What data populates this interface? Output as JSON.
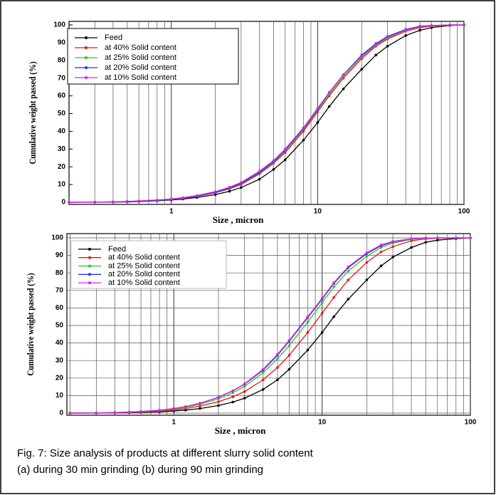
{
  "chart_data": [
    {
      "type": "line",
      "xlabel": "Size , micron",
      "ylabel": "Cumulative weight passed (%)",
      "xscale": "log",
      "xlim": [
        0.2,
        100
      ],
      "ylim": [
        0,
        100
      ],
      "xticks": [
        1,
        10,
        100
      ],
      "yticks": [
        0,
        10,
        20,
        30,
        40,
        50,
        60,
        70,
        80,
        90,
        100
      ],
      "x_minor_grid": [
        0.3,
        0.4,
        0.5,
        0.6,
        0.7,
        0.8,
        0.9,
        2,
        3,
        4,
        5,
        6,
        7,
        8,
        9,
        20,
        30,
        40,
        50,
        60,
        70,
        80,
        90
      ],
      "grid": {
        "x": true,
        "y": false
      },
      "legend": "upper left",
      "x": [
        0.2,
        0.3,
        0.4,
        0.5,
        0.6,
        0.8,
        1,
        1.2,
        1.5,
        2,
        2.5,
        3,
        4,
        5,
        6,
        8,
        10,
        12,
        15,
        20,
        25,
        30,
        40,
        50,
        60,
        80,
        100
      ],
      "series": [
        {
          "name": "Feed",
          "color": "#000000",
          "values": [
            0,
            0,
            0.1,
            0.2,
            0.4,
            0.8,
            1.3,
            1.8,
            2.7,
            4.3,
            6.2,
            8.3,
            13,
            18.5,
            24,
            35,
            45,
            54,
            64,
            75,
            83,
            88,
            94,
            97,
            98.5,
            99.7,
            100
          ]
        },
        {
          "name": "at 40% Solid content",
          "color": "#e8141e",
          "values": [
            0,
            0.1,
            0.2,
            0.4,
            0.6,
            1.0,
            1.6,
            2.2,
            3.3,
            5.3,
            7.6,
            10,
            16,
            22,
            28,
            40,
            51,
            60,
            70,
            81,
            88,
            92,
            96.5,
            98.5,
            99.3,
            99.9,
            100
          ]
        },
        {
          "name": "at 25% Solid content",
          "color": "#22cc22",
          "values": [
            0,
            0.1,
            0.2,
            0.4,
            0.6,
            1.0,
            1.6,
            2.3,
            3.4,
            5.5,
            7.8,
            10.5,
            16.5,
            22.5,
            29,
            41,
            52,
            61,
            71,
            82,
            88.5,
            92.5,
            97,
            99,
            99.5,
            100,
            100
          ]
        },
        {
          "name": "at 20% Solid content",
          "color": "#2233ee",
          "values": [
            0,
            0.1,
            0.2,
            0.4,
            0.7,
            1.1,
            1.7,
            2.4,
            3.5,
            5.6,
            8,
            10.7,
            16.8,
            23,
            29.5,
            41.5,
            52.5,
            62,
            72,
            83,
            89.5,
            93.5,
            97.5,
            99.3,
            99.7,
            100,
            100
          ]
        },
        {
          "name": "at 10% Solid content",
          "color": "#e020e0",
          "values": [
            0,
            0.1,
            0.3,
            0.5,
            0.8,
            1.3,
            1.9,
            2.6,
            3.8,
            6,
            8.5,
            11.2,
            17.5,
            23.5,
            30,
            42,
            53,
            62,
            72,
            82.5,
            89,
            93,
            97.2,
            99,
            99.6,
            100,
            100
          ]
        }
      ]
    },
    {
      "type": "line",
      "xlabel": "Size , micron",
      "ylabel": "Cumulative weight passed (%)",
      "xscale": "log",
      "xlim": [
        0.19,
        100
      ],
      "ylim": [
        0,
        100
      ],
      "xticks": [
        1,
        10,
        100
      ],
      "yticks": [
        0,
        10,
        20,
        30,
        40,
        50,
        60,
        70,
        80,
        90,
        100
      ],
      "x_minor_grid": [
        0.2,
        0.3,
        0.4,
        0.5,
        0.6,
        0.7,
        0.8,
        0.9,
        2,
        3,
        4,
        5,
        6,
        7,
        8,
        9,
        20,
        30,
        40,
        50,
        60,
        70,
        80,
        90
      ],
      "grid": {
        "x": true,
        "y": true
      },
      "legend": "upper left",
      "x": [
        0.2,
        0.3,
        0.4,
        0.5,
        0.6,
        0.8,
        1,
        1.2,
        1.5,
        2,
        2.5,
        3,
        4,
        5,
        6,
        8,
        10,
        12,
        15,
        20,
        25,
        30,
        40,
        50,
        60,
        80,
        100
      ],
      "series": [
        {
          "name": "Feed",
          "color": "#000000",
          "values": [
            0,
            0,
            0.1,
            0.2,
            0.4,
            0.7,
            1.2,
            1.7,
            2.6,
            4.3,
            6.3,
            8.5,
            13.5,
            19,
            25,
            36,
            46,
            55,
            65,
            76,
            84,
            89,
            94.5,
            97.5,
            98.7,
            99.6,
            100
          ]
        },
        {
          "name": "at 40% Solid content",
          "color": "#e8141e",
          "values": [
            0,
            0.1,
            0.2,
            0.4,
            0.6,
            1.1,
            1.8,
            2.6,
            4,
            6.5,
            9.3,
            12.3,
            19,
            26,
            33,
            46,
            57,
            66,
            76,
            86,
            92,
            95,
            98.3,
            99.5,
            99.8,
            100,
            100
          ]
        },
        {
          "name": "at 25% Solid content",
          "color": "#22cc22",
          "values": [
            0,
            0.1,
            0.3,
            0.5,
            0.8,
            1.4,
            2.3,
            3.3,
            5,
            8.2,
            11.6,
            15.2,
            23,
            31,
            38.5,
            52,
            63,
            72,
            81,
            89.5,
            94.5,
            97,
            99.2,
            99.8,
            100,
            100,
            100
          ]
        },
        {
          "name": "at 20% Solid content",
          "color": "#2233ee",
          "values": [
            0,
            0.1,
            0.3,
            0.6,
            0.9,
            1.6,
            2.6,
            3.7,
            5.6,
            9,
            12.7,
            16.5,
            24.5,
            33,
            41,
            54.5,
            65,
            74,
            83,
            91,
            95.5,
            97.7,
            99.4,
            99.9,
            100,
            100,
            100
          ]
        },
        {
          "name": "at 10% Solid content",
          "color": "#e020e0",
          "values": [
            0,
            0.1,
            0.3,
            0.6,
            0.9,
            1.6,
            2.6,
            3.7,
            5.6,
            9.1,
            12.8,
            16.7,
            25,
            33.5,
            41.5,
            55,
            65.5,
            74.5,
            83.5,
            91.5,
            96,
            98,
            99.5,
            99.9,
            100,
            100,
            100
          ]
        }
      ]
    }
  ],
  "caption": [
    "Fig. 7: Size analysis of products at different  slurry solid content",
    "(a)  during 30 min grinding  (b)  during 90 min grinding"
  ]
}
